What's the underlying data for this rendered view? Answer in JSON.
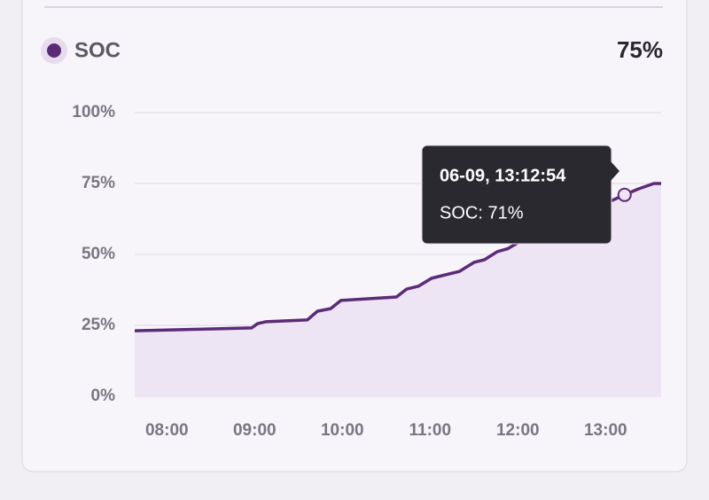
{
  "chart_data": {
    "type": "area",
    "legend": "SOC",
    "current_value": "75%",
    "x": [
      458,
      538,
      542,
      548,
      576,
      583,
      592,
      599,
      637,
      644,
      652,
      661,
      680,
      690,
      697,
      706,
      713,
      724,
      793,
      802,
      813,
      818
    ],
    "series": [
      {
        "name": "SOC",
        "color": "#5c2b78",
        "values": [
          23.1,
          24.1,
          25.6,
          26.3,
          26.9,
          30,
          30.9,
          33.8,
          35,
          37.8,
          38.8,
          41.6,
          44,
          47.2,
          48.1,
          51,
          52,
          55.3,
          71,
          73,
          75,
          75
        ]
      }
    ],
    "fill_color": "#ede5f3",
    "xlim": [
      458,
      818
    ],
    "xticks": [
      {
        "value": 480,
        "label": "08:00"
      },
      {
        "value": 540,
        "label": "09:00"
      },
      {
        "value": 600,
        "label": "10:00"
      },
      {
        "value": 660,
        "label": "11:00"
      },
      {
        "value": 720,
        "label": "12:00"
      },
      {
        "value": 780,
        "label": "13:00"
      }
    ],
    "ylim": [
      0,
      100
    ],
    "yticks": [
      {
        "value": 0,
        "label": "0%"
      },
      {
        "value": 25,
        "label": "25%"
      },
      {
        "value": 50,
        "label": "50%"
      },
      {
        "value": 75,
        "label": "75%"
      },
      {
        "value": 100,
        "label": "100%"
      }
    ],
    "grid": true,
    "tooltip": {
      "index": 18,
      "title": "06-09, 13:12:54",
      "text": "SOC: 71%"
    }
  }
}
